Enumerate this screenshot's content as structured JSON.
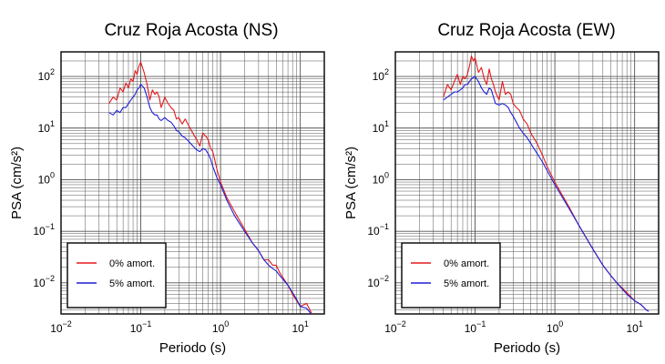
{
  "colors": {
    "undamped": "#e41a1c",
    "damped": "#1f1fd6",
    "grid": "#555555",
    "frame": "#000000"
  },
  "chart_data": [
    {
      "type": "line",
      "title": "Cruz Roja Acosta (NS)",
      "xlabel": "Periodo (s)",
      "ylabel": "PSA (cm/s²)",
      "xscale": "log",
      "yscale": "log",
      "xlim": [
        0.01,
        20
      ],
      "ylim": [
        0.0025,
        300
      ],
      "x_ticks": [
        {
          "base": "10",
          "exp": "−2",
          "value": 0.01
        },
        {
          "base": "10",
          "exp": "−1",
          "value": 0.1
        },
        {
          "base": "10",
          "exp": "0",
          "value": 1
        },
        {
          "base": "10",
          "exp": "1",
          "value": 10
        }
      ],
      "y_ticks": [
        {
          "base": "10",
          "exp": "−2",
          "value": 0.01
        },
        {
          "base": "10",
          "exp": "−1",
          "value": 0.1
        },
        {
          "base": "10",
          "exp": "0",
          "value": 1
        },
        {
          "base": "10",
          "exp": "1",
          "value": 10
        },
        {
          "base": "10",
          "exp": "2",
          "value": 100
        }
      ],
      "grid": true,
      "legend_position": "bottom-left",
      "series": [
        {
          "name": "0% amort.",
          "color": "#e41a1c",
          "x": [
            0.04,
            0.045,
            0.05,
            0.055,
            0.06,
            0.065,
            0.07,
            0.075,
            0.08,
            0.085,
            0.09,
            0.095,
            0.1,
            0.11,
            0.12,
            0.13,
            0.14,
            0.15,
            0.16,
            0.17,
            0.18,
            0.2,
            0.22,
            0.24,
            0.26,
            0.28,
            0.3,
            0.33,
            0.36,
            0.4,
            0.45,
            0.5,
            0.55,
            0.6,
            0.65,
            0.7,
            0.75,
            0.8,
            0.9,
            1.0,
            1.2,
            1.5,
            2.0,
            2.5,
            3.0,
            3.5,
            4.0,
            4.5,
            5.0,
            5.5,
            6.0,
            7.0,
            8.0,
            9.0,
            10.0,
            12.0,
            14.0,
            16.0
          ],
          "y": [
            30,
            40,
            35,
            60,
            50,
            75,
            60,
            90,
            80,
            130,
            110,
            160,
            190,
            120,
            70,
            35,
            55,
            45,
            50,
            40,
            25,
            40,
            30,
            25,
            22,
            15,
            16,
            12,
            15,
            11,
            8,
            6,
            4.5,
            8,
            7,
            6,
            4,
            3.5,
            1.6,
            0.9,
            0.45,
            0.24,
            0.11,
            0.06,
            0.042,
            0.028,
            0.028,
            0.022,
            0.022,
            0.016,
            0.013,
            0.009,
            0.006,
            0.0045,
            0.0035,
            0.004,
            0.0025,
            0.0022
          ]
        },
        {
          "name": "5% amort.",
          "color": "#1f1fd6",
          "x": [
            0.04,
            0.045,
            0.05,
            0.055,
            0.06,
            0.065,
            0.07,
            0.075,
            0.08,
            0.085,
            0.09,
            0.095,
            0.1,
            0.11,
            0.12,
            0.13,
            0.14,
            0.15,
            0.16,
            0.17,
            0.18,
            0.2,
            0.22,
            0.24,
            0.26,
            0.28,
            0.3,
            0.33,
            0.36,
            0.4,
            0.45,
            0.5,
            0.55,
            0.6,
            0.65,
            0.7,
            0.75,
            0.8,
            0.9,
            1.0,
            1.2,
            1.5,
            2.0,
            2.5,
            3.0,
            3.5,
            4.0,
            4.5,
            5.0,
            5.5,
            6.0,
            7.0,
            8.0,
            9.0,
            10.0,
            12.0,
            14.0,
            16.0
          ],
          "y": [
            20,
            18,
            22,
            20,
            25,
            25,
            30,
            35,
            40,
            45,
            55,
            60,
            70,
            60,
            40,
            25,
            20,
            18,
            18,
            15,
            14,
            16,
            14,
            13,
            11,
            9,
            8.5,
            7,
            6.5,
            5.5,
            4.5,
            3.8,
            3.5,
            4,
            3.8,
            3.2,
            2.5,
            1.8,
            1.1,
            0.8,
            0.4,
            0.2,
            0.1,
            0.06,
            0.042,
            0.028,
            0.022,
            0.019,
            0.017,
            0.014,
            0.012,
            0.009,
            0.0065,
            0.0048,
            0.0035,
            0.0032,
            0.0024,
            0.0021
          ]
        }
      ]
    },
    {
      "type": "line",
      "title": "Cruz Roja Acosta (EW)",
      "xlabel": "Periodo (s)",
      "ylabel": "PSA (cm/s²)",
      "xscale": "log",
      "yscale": "log",
      "xlim": [
        0.01,
        20
      ],
      "ylim": [
        0.0025,
        300
      ],
      "x_ticks": [
        {
          "base": "10",
          "exp": "−2",
          "value": 0.01
        },
        {
          "base": "10",
          "exp": "−1",
          "value": 0.1
        },
        {
          "base": "10",
          "exp": "0",
          "value": 1
        },
        {
          "base": "10",
          "exp": "1",
          "value": 10
        }
      ],
      "y_ticks": [
        {
          "base": "10",
          "exp": "−2",
          "value": 0.01
        },
        {
          "base": "10",
          "exp": "−1",
          "value": 0.1
        },
        {
          "base": "10",
          "exp": "0",
          "value": 1
        },
        {
          "base": "10",
          "exp": "1",
          "value": 10
        },
        {
          "base": "10",
          "exp": "2",
          "value": 100
        }
      ],
      "grid": true,
      "legend_position": "bottom-left",
      "series": [
        {
          "name": "0% amort.",
          "color": "#e41a1c",
          "x": [
            0.04,
            0.045,
            0.05,
            0.055,
            0.06,
            0.065,
            0.07,
            0.075,
            0.08,
            0.085,
            0.09,
            0.095,
            0.1,
            0.11,
            0.12,
            0.13,
            0.14,
            0.15,
            0.16,
            0.17,
            0.18,
            0.2,
            0.22,
            0.24,
            0.26,
            0.28,
            0.3,
            0.33,
            0.36,
            0.4,
            0.45,
            0.5,
            0.6,
            0.7,
            0.8,
            1.0,
            1.5,
            2.0,
            3.0,
            4.0,
            5.0,
            6.0,
            8.0,
            10.0,
            12.0,
            14.0,
            15.0
          ],
          "y": [
            40,
            70,
            55,
            80,
            110,
            70,
            100,
            90,
            110,
            160,
            250,
            200,
            230,
            120,
            150,
            90,
            70,
            140,
            90,
            70,
            50,
            35,
            80,
            45,
            50,
            45,
            30,
            25,
            22,
            15,
            12,
            8,
            5,
            3,
            1.8,
            0.9,
            0.3,
            0.13,
            0.045,
            0.022,
            0.014,
            0.01,
            0.0065,
            0.0045,
            0.0038,
            0.003,
            0.0028
          ]
        },
        {
          "name": "5% amort.",
          "color": "#1f1fd6",
          "x": [
            0.04,
            0.045,
            0.05,
            0.055,
            0.06,
            0.065,
            0.07,
            0.075,
            0.08,
            0.085,
            0.09,
            0.095,
            0.1,
            0.11,
            0.12,
            0.13,
            0.14,
            0.15,
            0.16,
            0.17,
            0.18,
            0.2,
            0.22,
            0.24,
            0.26,
            0.28,
            0.3,
            0.33,
            0.36,
            0.4,
            0.45,
            0.5,
            0.6,
            0.7,
            0.8,
            1.0,
            1.5,
            2.0,
            3.0,
            4.0,
            5.0,
            6.0,
            8.0,
            10.0,
            12.0,
            14.0,
            15.0
          ],
          "y": [
            35,
            40,
            45,
            50,
            50,
            55,
            60,
            70,
            70,
            80,
            90,
            95,
            100,
            80,
            60,
            50,
            45,
            60,
            55,
            40,
            30,
            28,
            30,
            28,
            25,
            20,
            17,
            13,
            10,
            8,
            6.5,
            5,
            3.2,
            2.2,
            1.5,
            0.8,
            0.28,
            0.13,
            0.045,
            0.022,
            0.014,
            0.01,
            0.006,
            0.0045,
            0.0038,
            0.003,
            0.0028
          ]
        }
      ]
    }
  ]
}
